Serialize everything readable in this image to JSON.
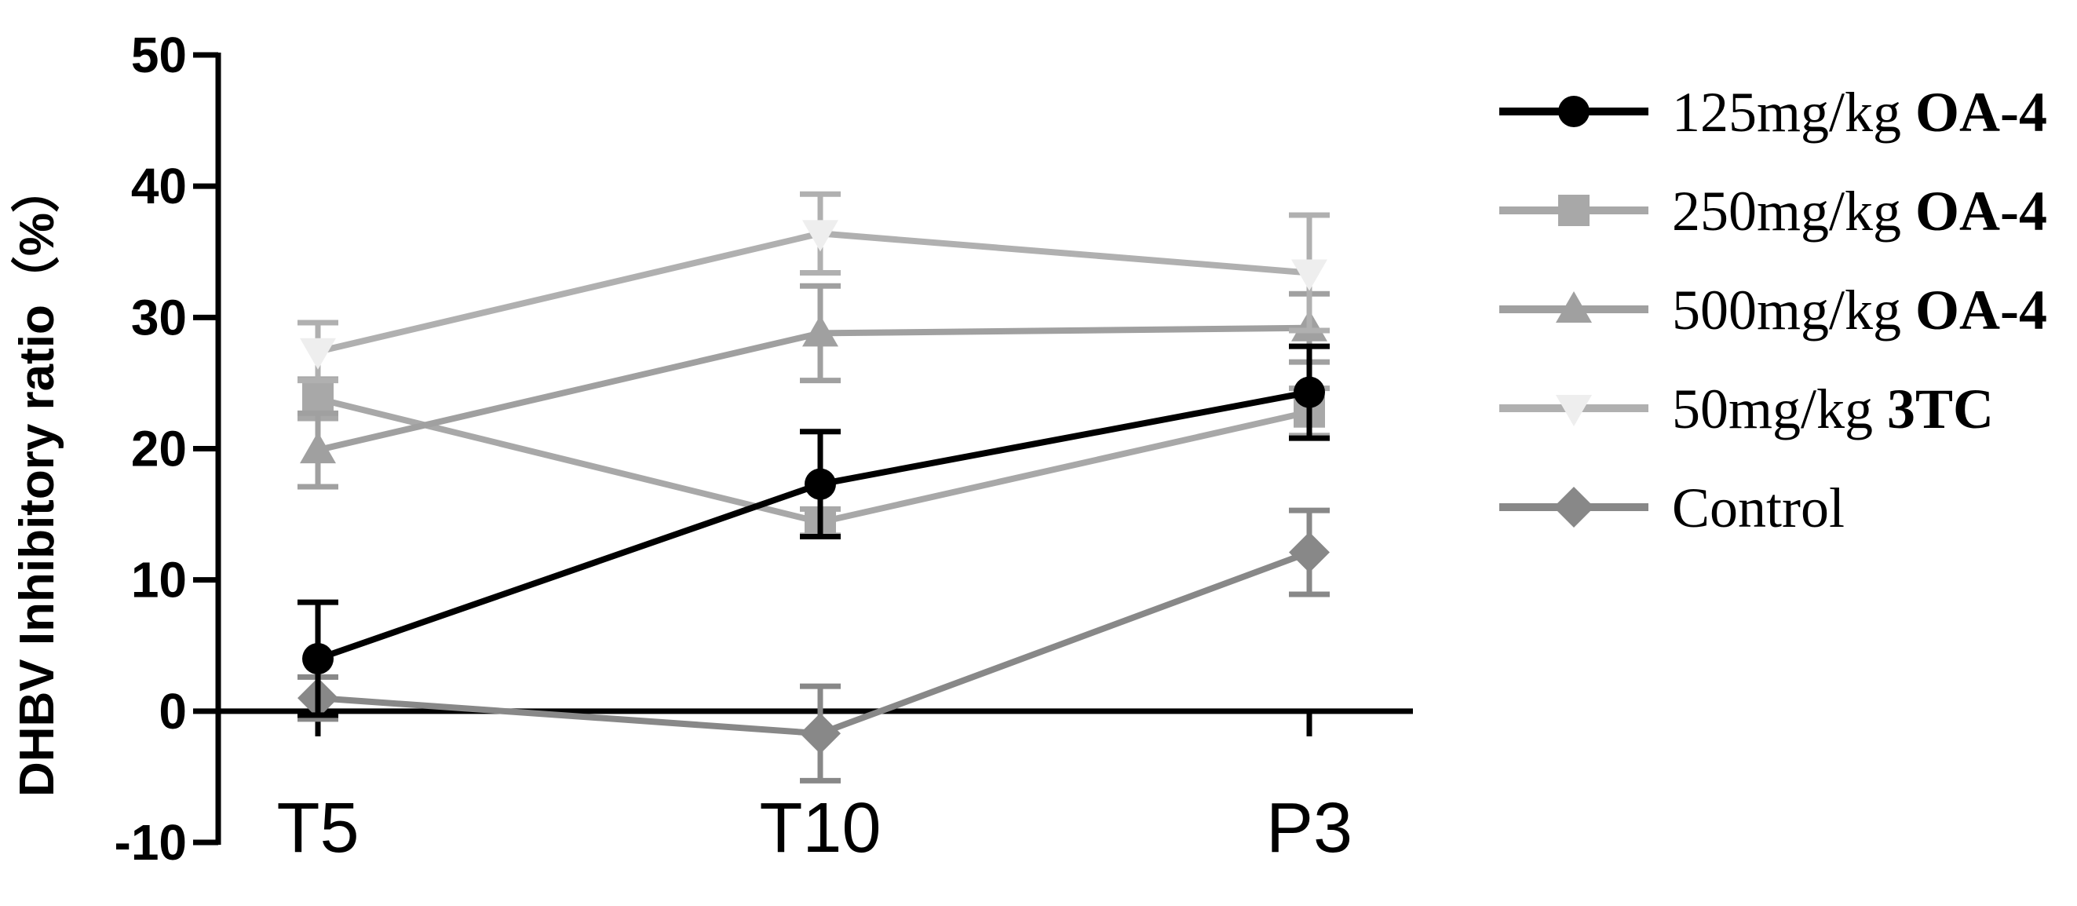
{
  "chart_data": {
    "type": "line",
    "title": "",
    "xlabel": "",
    "ylabel": "DHBV Inhibitory ratio（%）",
    "categories": [
      "T5",
      "T10",
      "P3"
    ],
    "ylim": [
      -10,
      50
    ],
    "yticks": [
      -10,
      0,
      10,
      20,
      30,
      40,
      50
    ],
    "grid": false,
    "legend_position": "right",
    "series": [
      {
        "name": "125mg/kg OA-4",
        "name_plain": "125mg/kg ",
        "name_bold": "OA-4",
        "marker": "circle",
        "color": "#000000",
        "values": [
          4.0,
          17.3,
          24.3
        ],
        "errors": [
          4.3,
          4.0,
          3.5
        ]
      },
      {
        "name": "250mg/kg OA-4",
        "name_plain": "250mg/kg ",
        "name_bold": "OA-4",
        "marker": "square",
        "color": "#a8a8a8",
        "values": [
          23.8,
          14.4,
          22.8
        ],
        "errors": [
          1.5,
          1.0,
          1.8
        ]
      },
      {
        "name": "500mg/kg OA-4",
        "name_plain": "500mg/kg ",
        "name_bold": "OA-4",
        "marker": "triangle-up",
        "color": "#a0a0a0",
        "values": [
          19.9,
          28.8,
          29.2
        ],
        "errors": [
          2.8,
          3.6,
          2.6
        ]
      },
      {
        "name": "50mg/kg 3TC",
        "name_plain": "50mg/kg ",
        "name_bold": "3TC",
        "marker": "triangle-down",
        "color": "#b0b0b0",
        "marker_fill": "#eeeeee",
        "values": [
          27.4,
          36.4,
          33.4
        ],
        "errors": [
          2.2,
          3.0,
          4.4
        ]
      },
      {
        "name": "Control",
        "name_plain": "Control",
        "name_bold": "",
        "marker": "diamond",
        "color": "#888888",
        "values": [
          1.0,
          -1.7,
          12.1
        ],
        "errors": [
          1.6,
          3.6,
          3.2
        ]
      }
    ]
  }
}
